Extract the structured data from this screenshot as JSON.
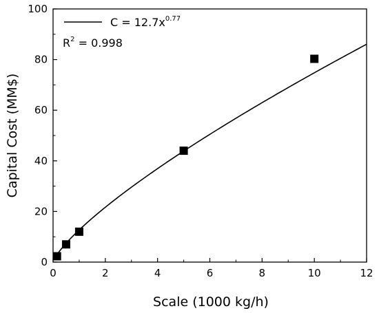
{
  "chart_data": {
    "type": "scatter",
    "xlabel": "Scale (1000 kg/h)",
    "ylabel": "Capital Cost (MM$)",
    "xlim": [
      0,
      12
    ],
    "ylim": [
      0,
      100
    ],
    "xticks": [
      "0",
      "2",
      "4",
      "6",
      "8",
      "10",
      "12"
    ],
    "yticks": [
      "0",
      "20",
      "40",
      "60",
      "80",
      "100"
    ],
    "grid": false,
    "legend_position": "top-left",
    "series": [
      {
        "kind": "markers",
        "marker": "filled-square",
        "color": "#000000",
        "x": [
          0.15,
          0.5,
          1,
          5,
          10
        ],
        "y": [
          2.3,
          7,
          12,
          44,
          80.3
        ]
      },
      {
        "kind": "fit-line",
        "color": "#000000",
        "model": {
          "coefficient": 12.7,
          "exponent": 0.77
        },
        "x_range": [
          0.15,
          12
        ]
      }
    ],
    "annotations": {
      "equation_main": "C = 12.7x",
      "equation_exponent": "0.77",
      "r2_prefix": "R",
      "r2_power": "2",
      "r2_value": " = 0.998"
    }
  }
}
